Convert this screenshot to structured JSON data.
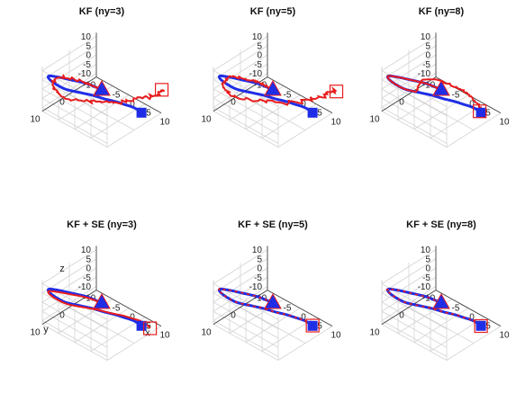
{
  "chart_data": {
    "type": "line",
    "projection": "3d",
    "grid": true,
    "colors": {
      "truth": "#1f2ee6",
      "estimate": "#e81c1c",
      "start_marker": "#1f2ee6",
      "end_marker_fill": "#1f2ee6",
      "end_estimate_marker": "#e81c1c"
    },
    "markers": {
      "start": "filled blue triangle with red edge",
      "truth_end": "filled blue square",
      "estimate_end": "hollow red square"
    },
    "axes": {
      "xlabel": "x",
      "ylabel": "y",
      "zlabel": "z",
      "x_ticks": [
        "-5",
        "0",
        "5",
        "10"
      ],
      "y_ticks": [
        "10",
        "0",
        "-10"
      ],
      "z_ticks": [
        "10",
        "5",
        "0",
        "-5",
        "-10"
      ],
      "xlim": [
        -10,
        10
      ],
      "ylim": [
        -10,
        10
      ],
      "zlim": [
        -12,
        12
      ]
    },
    "panels": [
      {
        "title": "KF (ny=3)",
        "estimate_quality": "diverges",
        "show_axis_labels": false
      },
      {
        "title": "KF (ny=5)",
        "estimate_quality": "diverges",
        "show_axis_labels": false
      },
      {
        "title": "KF  (ny=8)",
        "estimate_quality": "partial",
        "show_axis_labels": false
      },
      {
        "title": "KF + SE (ny=3)",
        "estimate_quality": "close",
        "show_axis_labels": true
      },
      {
        "title": "KF + SE (ny=5)",
        "estimate_quality": "overlaps",
        "show_axis_labels": false
      },
      {
        "title": "KF + SE (ny=8)",
        "estimate_quality": "overlaps",
        "show_axis_labels": false
      }
    ],
    "truth_trajectory": {
      "x": [
        0,
        -1,
        -3,
        -5.5,
        -8,
        -9.5,
        -10,
        -9.5,
        -8,
        -5.5,
        -2.5,
        0.5,
        3,
        5.5,
        7.5,
        9.5,
        11
      ],
      "y": [
        0,
        4,
        8,
        10,
        10,
        8,
        5,
        2,
        -1,
        -3,
        -4,
        -4.5,
        -4.5,
        -4.2,
        -3.5,
        -2.5,
        -1.5
      ],
      "z": [
        0,
        6,
        10,
        11,
        9,
        4,
        -2,
        -7,
        -10,
        -11,
        -11,
        -10,
        -9,
        -7.5,
        -6,
        -4.5,
        -3
      ]
    }
  }
}
